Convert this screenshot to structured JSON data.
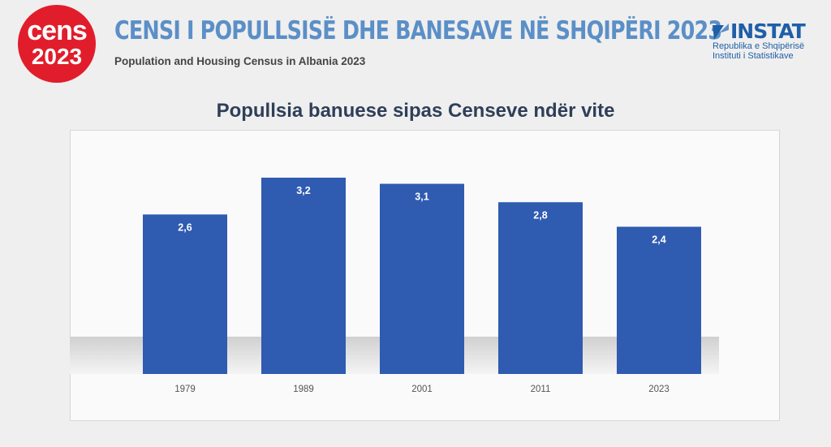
{
  "header": {
    "logo_word": "cens",
    "logo_year": "2023",
    "title": "CENSI I POPULLSISË DHE BANESAVE NË SHQIPËRI 2023",
    "subtitle": "Population and Housing Census in Albania 2023",
    "instat_name": "INSTAT",
    "instat_line1": "Republika e Shqipërisë",
    "instat_line2": "Instituti i Statistikave"
  },
  "colors": {
    "bar": "#2f5bb1",
    "title": "#5b8fc7",
    "logo": "#e11d2c"
  },
  "chart_data": {
    "type": "bar",
    "title": "Popullsia banuese sipas Censeve ndër vite",
    "categories": [
      "1979",
      "1989",
      "2001",
      "2011",
      "2023"
    ],
    "values": [
      2.6,
      3.2,
      3.1,
      2.8,
      2.4
    ],
    "labels": [
      "2,6",
      "3,2",
      "3,1",
      "2,8",
      "2,4"
    ],
    "xlabel": "",
    "ylabel": "",
    "ylim": [
      0,
      3.2
    ],
    "grid": false,
    "legend": "none"
  }
}
